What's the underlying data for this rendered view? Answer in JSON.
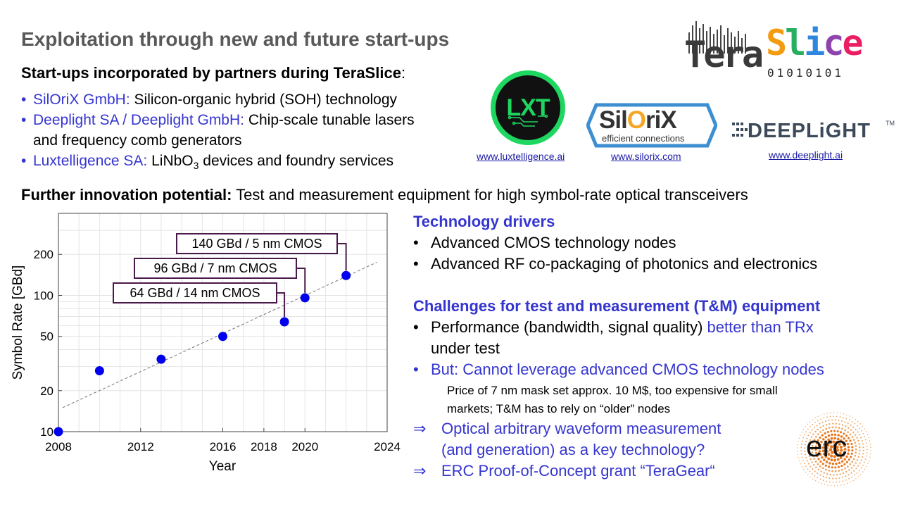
{
  "title": "Exploitation through new and future start-ups",
  "subhead": {
    "text": "Start-ups incorporated by partners during TeraSlice",
    "colon": ":"
  },
  "startups": [
    {
      "name": "SilOriX GmbH:",
      "desc": " Silicon-organic hybrid (SOH) technology"
    },
    {
      "name": "Deeplight SA / Deeplight GmbH:",
      "desc": " Chip-scale tunable lasers",
      "desc2": "and frequency comb generators"
    },
    {
      "name": "Luxtelligence SA:",
      "desc_pre": " LiNbO",
      "desc_sub": "3",
      "desc_post": " devices and foundry services"
    }
  ],
  "bullet_glyph": "•",
  "further": {
    "label": "Further innovation potential:",
    "text": " Test and measurement equipment for high symbol-rate optical transceivers"
  },
  "logos": {
    "teraslice": {
      "tera": "Tera",
      "slice": "Slice",
      "binary": "01010101"
    },
    "lxt": {
      "text": "LXT",
      "url": "www.luxtelligence.ai"
    },
    "silorix": {
      "text_pre": "Sil",
      "text_o": "O",
      "text_post": "riX",
      "tagline": "efficient connections",
      "url": "www.silorix.com"
    },
    "deeplight": {
      "text": "DEEPLiGHT",
      "tm": "TM",
      "url": "www.deeplight.ai"
    },
    "erc": {
      "text": "erc"
    }
  },
  "tech_drivers": {
    "heading": "Technology drivers",
    "items": [
      "Advanced CMOS technology nodes",
      "Advanced RF co-packaging of photonics and electronics"
    ]
  },
  "challenges": {
    "heading": "Challenges for test and measurement (T&M) equipment",
    "item1_pre": "Performance (bandwidth, signal quality) ",
    "item1_blue": "better than TRx",
    "item1_line2": "under test",
    "item2": "But: Cannot leverage advanced CMOS technology nodes",
    "note_line1": "Price of 7 nm mask set approx. 10 M$, too expensive for small",
    "note_line2": "markets; T&M has to rely on “older” nodes"
  },
  "conclusions": {
    "arrow": "⇒",
    "line1": "Optical arbitrary waveform measurement",
    "line1b": "(and generation) as a key technology?",
    "line2": "ERC Proof-of-Concept grant “TeraGear“"
  },
  "colors": {
    "accent_blue": "#3535d0",
    "title_gray": "#595959",
    "marker": "#0000ee",
    "annotation_border": "#4a1a4a"
  },
  "chart_data": {
    "type": "scatter",
    "xlabel": "Year",
    "ylabel": "Symbol Rate [GBd]",
    "xlim": [
      2008,
      2024
    ],
    "ylim": [
      10,
      400
    ],
    "yscale": "log",
    "grid": true,
    "xticks": [
      2008,
      2012,
      2016,
      2018,
      2020,
      2024
    ],
    "yticks": [
      10,
      20,
      50,
      100,
      200
    ],
    "points": [
      {
        "x": 2008,
        "y": 10
      },
      {
        "x": 2010,
        "y": 28
      },
      {
        "x": 2013,
        "y": 34
      },
      {
        "x": 2016,
        "y": 50
      },
      {
        "x": 2019,
        "y": 64
      },
      {
        "x": 2020,
        "y": 96
      },
      {
        "x": 2022,
        "y": 140
      }
    ],
    "trend": {
      "x": [
        2008.2,
        2023.5
      ],
      "y": [
        15,
        175
      ]
    },
    "annotations": [
      {
        "text": "64 GBd / 14 nm CMOS",
        "x": 2019,
        "y": 64
      },
      {
        "text": "96 GBd / 7 nm CMOS",
        "x": 2020,
        "y": 96
      },
      {
        "text": "140 GBd / 5 nm CMOS",
        "x": 2022,
        "y": 140
      }
    ]
  }
}
